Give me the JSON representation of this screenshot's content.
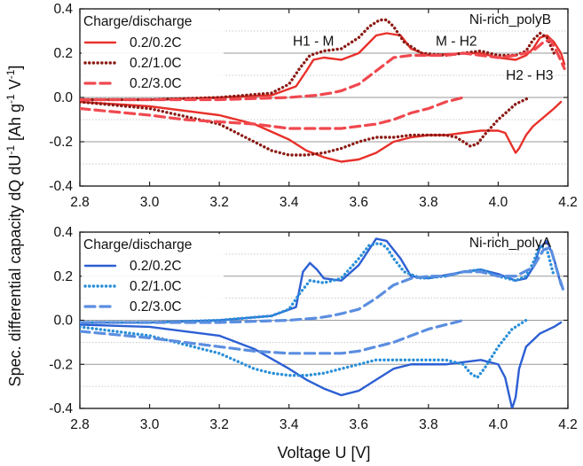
{
  "chart_data": [
    {
      "type": "line",
      "title": "Ni-rich_polyB",
      "legend_title": "Charge/discharge",
      "xlim": [
        2.8,
        4.2
      ],
      "ylim": [
        -0.4,
        0.4
      ],
      "x_ticks": [
        "2.8",
        "3.0",
        "3.2",
        "3.4",
        "3.6",
        "3.8",
        "4.0",
        "4.2"
      ],
      "y_ticks": [
        "-0.4",
        "-0.2",
        "0.0",
        "0.2",
        "0.4"
      ],
      "annotations": [
        {
          "text": "H1 - M",
          "x": 3.47,
          "y": 0.235
        },
        {
          "text": "M - H2",
          "x": 3.88,
          "y": 0.235
        },
        {
          "text": "H2 - H3",
          "x": 4.09,
          "y": 0.08
        }
      ],
      "series": [
        {
          "name": "0.2/0.2C",
          "color": "#e8302a",
          "style": "solid",
          "x": [
            2.8,
            3.0,
            3.2,
            3.35,
            3.42,
            3.45,
            3.47,
            3.5,
            3.55,
            3.6,
            3.65,
            3.68,
            3.72,
            3.75,
            3.8,
            3.9,
            3.95,
            4.0,
            4.05,
            4.08,
            4.1,
            4.12,
            4.14,
            4.16,
            4.18,
            4.19
          ],
          "charge_y": [
            -0.01,
            -0.01,
            0.0,
            0.01,
            0.05,
            0.12,
            0.17,
            0.18,
            0.17,
            0.2,
            0.28,
            0.29,
            0.28,
            0.22,
            0.19,
            0.2,
            0.2,
            0.18,
            0.17,
            0.19,
            0.22,
            0.27,
            0.28,
            0.25,
            0.2,
            0.15
          ],
          "discharge_x": [
            2.8,
            3.0,
            3.2,
            3.3,
            3.4,
            3.45,
            3.5,
            3.55,
            3.6,
            3.65,
            3.7,
            3.75,
            3.8,
            3.85,
            3.9,
            3.95,
            4.0,
            4.02,
            4.04,
            4.05,
            4.06,
            4.08,
            4.1,
            4.13,
            4.16,
            4.18
          ],
          "discharge_y": [
            -0.02,
            -0.04,
            -0.08,
            -0.12,
            -0.19,
            -0.24,
            -0.27,
            -0.29,
            -0.28,
            -0.25,
            -0.2,
            -0.18,
            -0.17,
            -0.17,
            -0.16,
            -0.15,
            -0.15,
            -0.16,
            -0.22,
            -0.25,
            -0.23,
            -0.17,
            -0.13,
            -0.09,
            -0.05,
            -0.02
          ]
        },
        {
          "name": "0.2/1.0C",
          "color": "#8b1a14",
          "style": "dotted",
          "x": [
            2.8,
            3.0,
            3.2,
            3.35,
            3.4,
            3.43,
            3.46,
            3.5,
            3.55,
            3.6,
            3.63,
            3.66,
            3.68,
            3.7,
            3.73,
            3.78,
            3.85,
            3.9,
            3.95,
            4.0,
            4.05,
            4.08,
            4.1,
            4.12,
            4.14,
            4.16
          ],
          "charge_y": [
            -0.01,
            -0.01,
            0.0,
            0.02,
            0.06,
            0.13,
            0.19,
            0.21,
            0.22,
            0.27,
            0.32,
            0.35,
            0.35,
            0.32,
            0.25,
            0.2,
            0.19,
            0.2,
            0.21,
            0.19,
            0.19,
            0.21,
            0.26,
            0.29,
            0.27,
            0.2
          ],
          "discharge_x": [
            2.8,
            3.0,
            3.2,
            3.3,
            3.35,
            3.4,
            3.45,
            3.5,
            3.55,
            3.6,
            3.65,
            3.7,
            3.75,
            3.8,
            3.85,
            3.88,
            3.9,
            3.92,
            3.94,
            3.96,
            4.0,
            4.05,
            4.09
          ],
          "discharge_y": [
            -0.02,
            -0.05,
            -0.12,
            -0.2,
            -0.24,
            -0.26,
            -0.26,
            -0.25,
            -0.23,
            -0.2,
            -0.18,
            -0.18,
            -0.17,
            -0.17,
            -0.17,
            -0.18,
            -0.2,
            -0.22,
            -0.21,
            -0.17,
            -0.1,
            -0.03,
            0.0
          ]
        },
        {
          "name": "0.2/3.0C",
          "color": "#f0484f",
          "style": "dashed",
          "x": [
            2.8,
            3.0,
            3.2,
            3.4,
            3.48,
            3.52,
            3.55,
            3.6,
            3.65,
            3.7,
            3.75,
            3.8,
            3.85,
            3.9,
            3.95,
            4.0,
            4.05,
            4.1,
            4.13,
            4.15,
            4.17,
            4.19
          ],
          "charge_y": [
            -0.01,
            -0.01,
            -0.01,
            0.0,
            0.01,
            0.02,
            0.03,
            0.06,
            0.12,
            0.18,
            0.19,
            0.19,
            0.19,
            0.2,
            0.19,
            0.18,
            0.19,
            0.21,
            0.25,
            0.26,
            0.2,
            0.13
          ],
          "discharge_x": [
            2.8,
            3.0,
            3.1,
            3.2,
            3.3,
            3.4,
            3.5,
            3.55,
            3.6,
            3.65,
            3.7,
            3.75,
            3.8,
            3.85,
            3.9
          ],
          "discharge_y": [
            -0.05,
            -0.08,
            -0.1,
            -0.11,
            -0.12,
            -0.14,
            -0.14,
            -0.14,
            -0.13,
            -0.12,
            -0.1,
            -0.07,
            -0.05,
            -0.02,
            0.0
          ]
        }
      ]
    },
    {
      "type": "line",
      "title": "Ni-rich_polyA",
      "legend_title": "Charge/discharge",
      "xlim": [
        2.8,
        4.2
      ],
      "ylim": [
        -0.4,
        0.4
      ],
      "x_ticks": [
        "2.8",
        "3.0",
        "3.2",
        "3.4",
        "3.6",
        "3.8",
        "4.0",
        "4.2"
      ],
      "y_ticks": [
        "-0.4",
        "-0.2",
        "0.0",
        "0.2",
        "0.4"
      ],
      "series": [
        {
          "name": "0.2/0.2C",
          "color": "#2d5fd3",
          "style": "solid",
          "x": [
            2.8,
            3.0,
            3.2,
            3.35,
            3.42,
            3.44,
            3.46,
            3.48,
            3.5,
            3.55,
            3.6,
            3.65,
            3.68,
            3.72,
            3.75,
            3.8,
            3.9,
            3.95,
            4.0,
            4.05,
            4.08,
            4.1,
            4.12,
            4.14,
            4.16,
            4.18
          ],
          "charge_y": [
            -0.01,
            -0.01,
            0.0,
            0.02,
            0.06,
            0.22,
            0.26,
            0.23,
            0.19,
            0.18,
            0.25,
            0.37,
            0.36,
            0.28,
            0.2,
            0.19,
            0.22,
            0.23,
            0.21,
            0.18,
            0.19,
            0.24,
            0.33,
            0.36,
            0.28,
            0.16
          ],
          "discharge_x": [
            2.8,
            3.0,
            3.2,
            3.3,
            3.4,
            3.45,
            3.5,
            3.55,
            3.6,
            3.65,
            3.7,
            3.75,
            3.8,
            3.85,
            3.9,
            3.95,
            4.0,
            4.02,
            4.03,
            4.04,
            4.05,
            4.06,
            4.08,
            4.12,
            4.16,
            4.18
          ],
          "discharge_y": [
            -0.02,
            -0.03,
            -0.07,
            -0.13,
            -0.22,
            -0.27,
            -0.31,
            -0.34,
            -0.32,
            -0.27,
            -0.22,
            -0.2,
            -0.2,
            -0.2,
            -0.19,
            -0.18,
            -0.2,
            -0.26,
            -0.33,
            -0.4,
            -0.35,
            -0.22,
            -0.12,
            -0.06,
            -0.03,
            -0.01
          ]
        },
        {
          "name": "0.2/1.0C",
          "color": "#2a8fd8",
          "style": "dotted",
          "x": [
            2.8,
            3.0,
            3.2,
            3.35,
            3.4,
            3.43,
            3.46,
            3.5,
            3.55,
            3.6,
            3.63,
            3.66,
            3.68,
            3.7,
            3.73,
            3.78,
            3.85,
            3.9,
            3.95,
            4.0,
            4.05,
            4.08,
            4.1,
            4.12,
            4.14,
            4.16
          ],
          "charge_y": [
            -0.01,
            -0.01,
            0.0,
            0.02,
            0.05,
            0.12,
            0.18,
            0.17,
            0.19,
            0.28,
            0.34,
            0.35,
            0.33,
            0.28,
            0.22,
            0.19,
            0.2,
            0.22,
            0.23,
            0.2,
            0.18,
            0.2,
            0.26,
            0.34,
            0.32,
            0.2
          ],
          "discharge_x": [
            2.8,
            3.0,
            3.2,
            3.3,
            3.35,
            3.4,
            3.45,
            3.5,
            3.55,
            3.6,
            3.65,
            3.7,
            3.75,
            3.8,
            3.85,
            3.9,
            3.92,
            3.94,
            3.96,
            4.0,
            4.04,
            4.08
          ],
          "discharge_y": [
            -0.03,
            -0.07,
            -0.15,
            -0.22,
            -0.24,
            -0.25,
            -0.25,
            -0.24,
            -0.22,
            -0.2,
            -0.18,
            -0.18,
            -0.18,
            -0.18,
            -0.18,
            -0.2,
            -0.24,
            -0.26,
            -0.22,
            -0.12,
            -0.04,
            0.0
          ]
        },
        {
          "name": "0.2/3.0C",
          "color": "#5b8ee0",
          "style": "dashed",
          "x": [
            2.8,
            3.0,
            3.2,
            3.4,
            3.48,
            3.52,
            3.55,
            3.6,
            3.65,
            3.7,
            3.75,
            3.8,
            3.85,
            3.9,
            3.95,
            4.0,
            4.05,
            4.1,
            4.13,
            4.15,
            4.17,
            4.19
          ],
          "charge_y": [
            -0.01,
            -0.01,
            -0.01,
            0.0,
            0.01,
            0.02,
            0.03,
            0.05,
            0.1,
            0.16,
            0.19,
            0.2,
            0.2,
            0.22,
            0.22,
            0.2,
            0.2,
            0.24,
            0.32,
            0.33,
            0.22,
            0.12
          ],
          "discharge_x": [
            2.8,
            3.0,
            3.1,
            3.2,
            3.3,
            3.4,
            3.5,
            3.55,
            3.6,
            3.65,
            3.7,
            3.75,
            3.8,
            3.85,
            3.9
          ],
          "discharge_y": [
            -0.05,
            -0.08,
            -0.1,
            -0.12,
            -0.14,
            -0.15,
            -0.15,
            -0.15,
            -0.14,
            -0.12,
            -0.1,
            -0.07,
            -0.04,
            -0.02,
            0.0
          ]
        }
      ]
    }
  ],
  "y_axis_label": "Spec. differential capacity dQ dU",
  "y_axis_label_sup1": "-1",
  "y_axis_label_mid": " [Ah g",
  "y_axis_label_sup2": "-1",
  "y_axis_label_mid2": " V",
  "y_axis_label_sup3": "-1",
  "y_axis_label_end": "]",
  "x_axis_label": "Voltage U [V]"
}
